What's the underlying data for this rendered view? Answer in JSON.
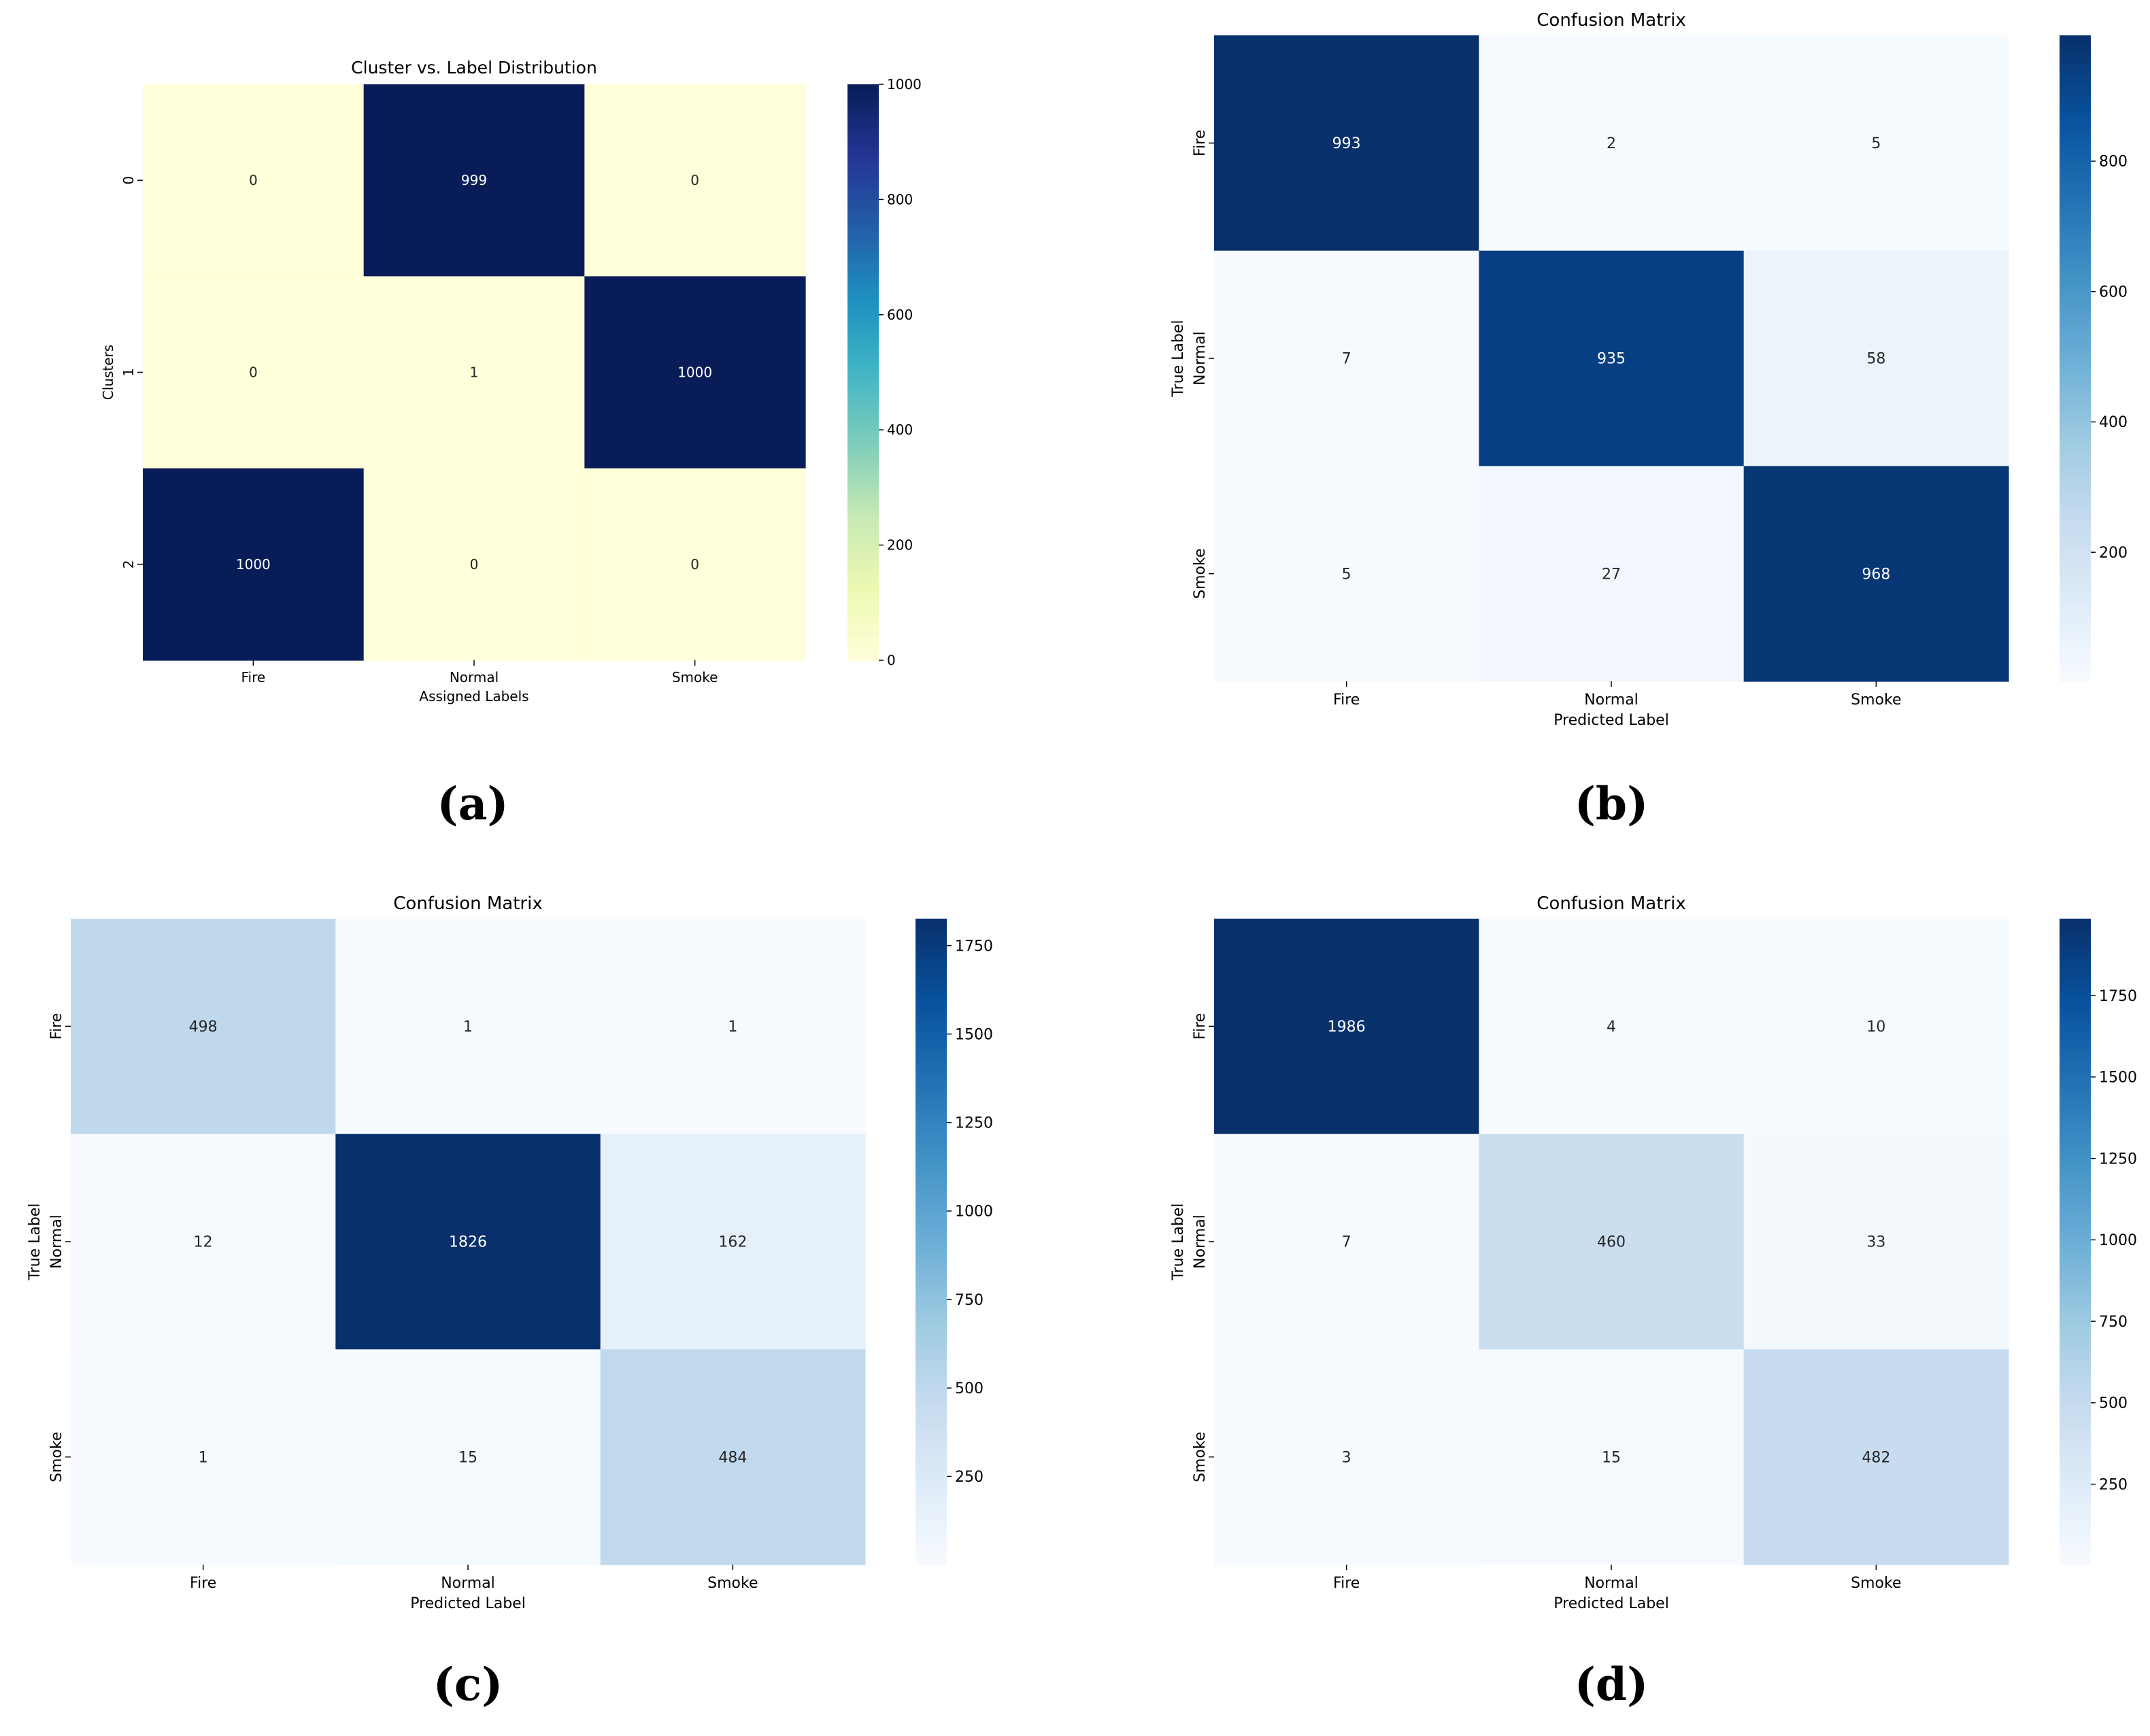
{
  "chart_data": [
    {
      "type": "heatmap",
      "panel_label": "(a)",
      "title": "Cluster vs. Label Distribution",
      "xlabel": "Assigned Labels",
      "ylabel": "Clusters",
      "x_categories": [
        "Fire",
        "Normal",
        "Smoke"
      ],
      "y_categories": [
        "0",
        "1",
        "2"
      ],
      "values": [
        [
          0,
          999,
          0
        ],
        [
          0,
          1,
          1000
        ],
        [
          1000,
          0,
          0
        ]
      ],
      "colormap": "YlGnBu",
      "color_range": [
        0,
        1000
      ],
      "colorbar_ticks": [
        0,
        200,
        400,
        600,
        800,
        1000
      ]
    },
    {
      "type": "heatmap",
      "panel_label": "(b)",
      "title": "Confusion Matrix",
      "xlabel": "Predicted Label",
      "ylabel": "True Label",
      "x_categories": [
        "Fire",
        "Normal",
        "Smoke"
      ],
      "y_categories": [
        "Fire",
        "Normal",
        "Smoke"
      ],
      "values": [
        [
          993,
          2,
          5
        ],
        [
          7,
          935,
          58
        ],
        [
          5,
          27,
          968
        ]
      ],
      "colormap": "Blues",
      "color_range": [
        2,
        993
      ],
      "colorbar_ticks": [
        200,
        400,
        600,
        800
      ]
    },
    {
      "type": "heatmap",
      "panel_label": "(c)",
      "title": "Confusion Matrix",
      "xlabel": "Predicted Label",
      "ylabel": "True Label",
      "x_categories": [
        "Fire",
        "Normal",
        "Smoke"
      ],
      "y_categories": [
        "Fire",
        "Normal",
        "Smoke"
      ],
      "values": [
        [
          498,
          1,
          1
        ],
        [
          12,
          1826,
          162
        ],
        [
          1,
          15,
          484
        ]
      ],
      "colormap": "Blues",
      "color_range": [
        1,
        1826
      ],
      "colorbar_ticks": [
        250,
        500,
        750,
        1000,
        1250,
        1500,
        1750
      ]
    },
    {
      "type": "heatmap",
      "panel_label": "(d)",
      "title": "Confusion Matrix",
      "xlabel": "Predicted Label",
      "ylabel": "True Label",
      "x_categories": [
        "Fire",
        "Normal",
        "Smoke"
      ],
      "y_categories": [
        "Fire",
        "Normal",
        "Smoke"
      ],
      "values": [
        [
          1986,
          4,
          10
        ],
        [
          7,
          460,
          33
        ],
        [
          3,
          15,
          482
        ]
      ],
      "colormap": "Blues",
      "color_range": [
        3,
        1986
      ],
      "colorbar_ticks": [
        250,
        500,
        750,
        1000,
        1250,
        1500,
        1750
      ]
    }
  ]
}
